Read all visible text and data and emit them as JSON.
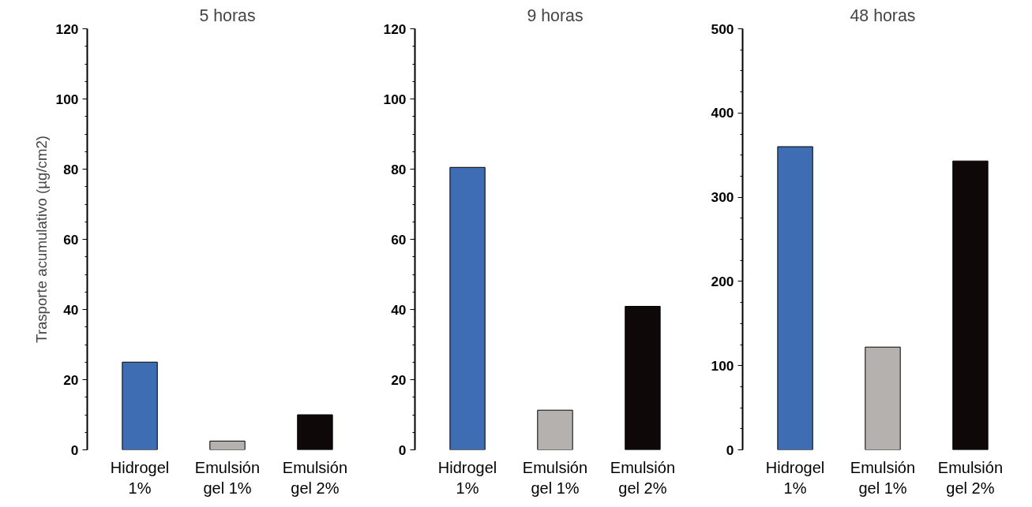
{
  "chart_data": [
    {
      "type": "bar",
      "title": "5 horas",
      "ylabel": "Trasporte acumulativo (µg/cm2)",
      "categories": [
        "Hidrogel\n1%",
        "Emulsión\ngel 1%",
        "Emulsión\ngel 2%"
      ],
      "values": [
        25,
        2.5,
        10
      ],
      "colors": [
        "#3e6db3",
        "#b5b1ae",
        "#0e0809"
      ],
      "ylim": [
        0,
        120
      ],
      "yticks": [
        0,
        20,
        40,
        60,
        80,
        100,
        120
      ],
      "grid": false
    },
    {
      "type": "bar",
      "title": "9 horas",
      "categories": [
        "Hidrogel\n1%",
        "Emulsión\ngel 1%",
        "Emulsión\ngel 2%"
      ],
      "values": [
        80.5,
        11.3,
        40.9
      ],
      "colors": [
        "#3e6db3",
        "#b5b1ae",
        "#0e0809"
      ],
      "ylim": [
        0,
        120
      ],
      "yticks": [
        0,
        20,
        40,
        60,
        80,
        100,
        120
      ],
      "grid": false
    },
    {
      "type": "bar",
      "title": "48 horas",
      "categories": [
        "Hidrogel\n1%",
        "Emulsión\ngel 1%",
        "Emulsión\ngel 2%"
      ],
      "values": [
        360,
        122,
        343
      ],
      "colors": [
        "#3e6db3",
        "#b5b1ae",
        "#0e0809"
      ],
      "ylim": [
        0,
        500
      ],
      "yticks": [
        0,
        100,
        200,
        300,
        400,
        500
      ],
      "grid": false
    }
  ]
}
